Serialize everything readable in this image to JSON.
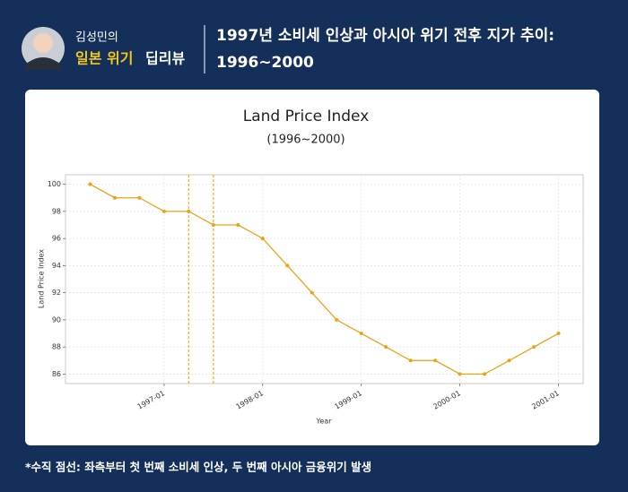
{
  "header": {
    "name": "김성민의",
    "brand_1": "일본 위기",
    "brand_2": "딥리뷰",
    "title": [
      "1997년 소비세 인상과 아시아 위기 전후 지가 추이:",
      "1996~2000"
    ]
  },
  "chart_data": {
    "type": "line",
    "title": "Land Price Index",
    "subtitle": "(1996~2000)",
    "x_label": "Year",
    "y_label": "Land Price Index",
    "x": [
      "1996-04",
      "1996-07",
      "1996-10",
      "1997-01",
      "1997-04",
      "1997-07",
      "1997-10",
      "1998-01",
      "1998-04",
      "1998-07",
      "1998-10",
      "1999-01",
      "1999-04",
      "1999-07",
      "1999-10",
      "2000-01",
      "2000-04",
      "2000-07",
      "2000-10",
      "2001-01"
    ],
    "series": [
      {
        "name": "Land Price Index",
        "color": "#e8a317",
        "values": [
          100,
          99,
          99,
          98,
          98,
          97,
          97,
          96,
          94,
          92,
          90,
          89,
          88,
          87,
          87,
          86,
          86,
          87,
          88,
          89
        ]
      }
    ],
    "vlines": [
      "1997-04",
      "1997-07"
    ],
    "vline_color": "#f0b429",
    "xlim": [
      "1996-01",
      "2001-04"
    ],
    "xticks": [
      "1997-01",
      "1998-01",
      "1999-01",
      "2000-01",
      "2001-01"
    ],
    "ylim": [
      85.3,
      100.7
    ],
    "yticks": [
      86,
      88,
      90,
      92,
      94,
      96,
      98,
      100
    ],
    "grid": true
  },
  "footnote": "*수직 점선: 좌측부터 첫 번째 소비세 인상, 두 번째 아시아 금융위기 발생"
}
